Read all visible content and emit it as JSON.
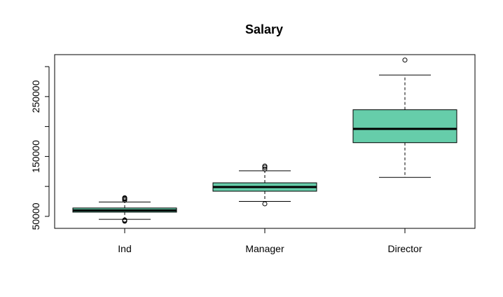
{
  "chart_data": {
    "type": "boxplot",
    "title": "Salary",
    "xlabel": "",
    "ylabel": "",
    "ylim": [
      30000,
      320000
    ],
    "yticks": [
      50000,
      100000,
      150000,
      200000,
      250000,
      300000
    ],
    "ytick_labels": [
      "50000",
      "",
      "150000",
      "",
      "250000",
      ""
    ],
    "box_color": "#66CDAA",
    "categories": [
      "Ind",
      "Manager",
      "Director"
    ],
    "boxes": [
      {
        "name": "Ind",
        "whisker_low": 45000,
        "q1": 57000,
        "median": 60000,
        "q3": 64000,
        "whisker_high": 74000,
        "outliers": [
          42000,
          43000,
          44000,
          77000,
          79000,
          80000,
          81000
        ]
      },
      {
        "name": "Manager",
        "whisker_low": 75000,
        "q1": 92000,
        "median": 99000,
        "q3": 106000,
        "whisker_high": 126000,
        "outliers": [
          71000,
          129000,
          132000,
          134000
        ]
      },
      {
        "name": "Director",
        "whisker_low": 115000,
        "q1": 173000,
        "median": 196000,
        "q3": 228000,
        "whisker_high": 286000,
        "outliers": [
          311000
        ]
      }
    ]
  }
}
